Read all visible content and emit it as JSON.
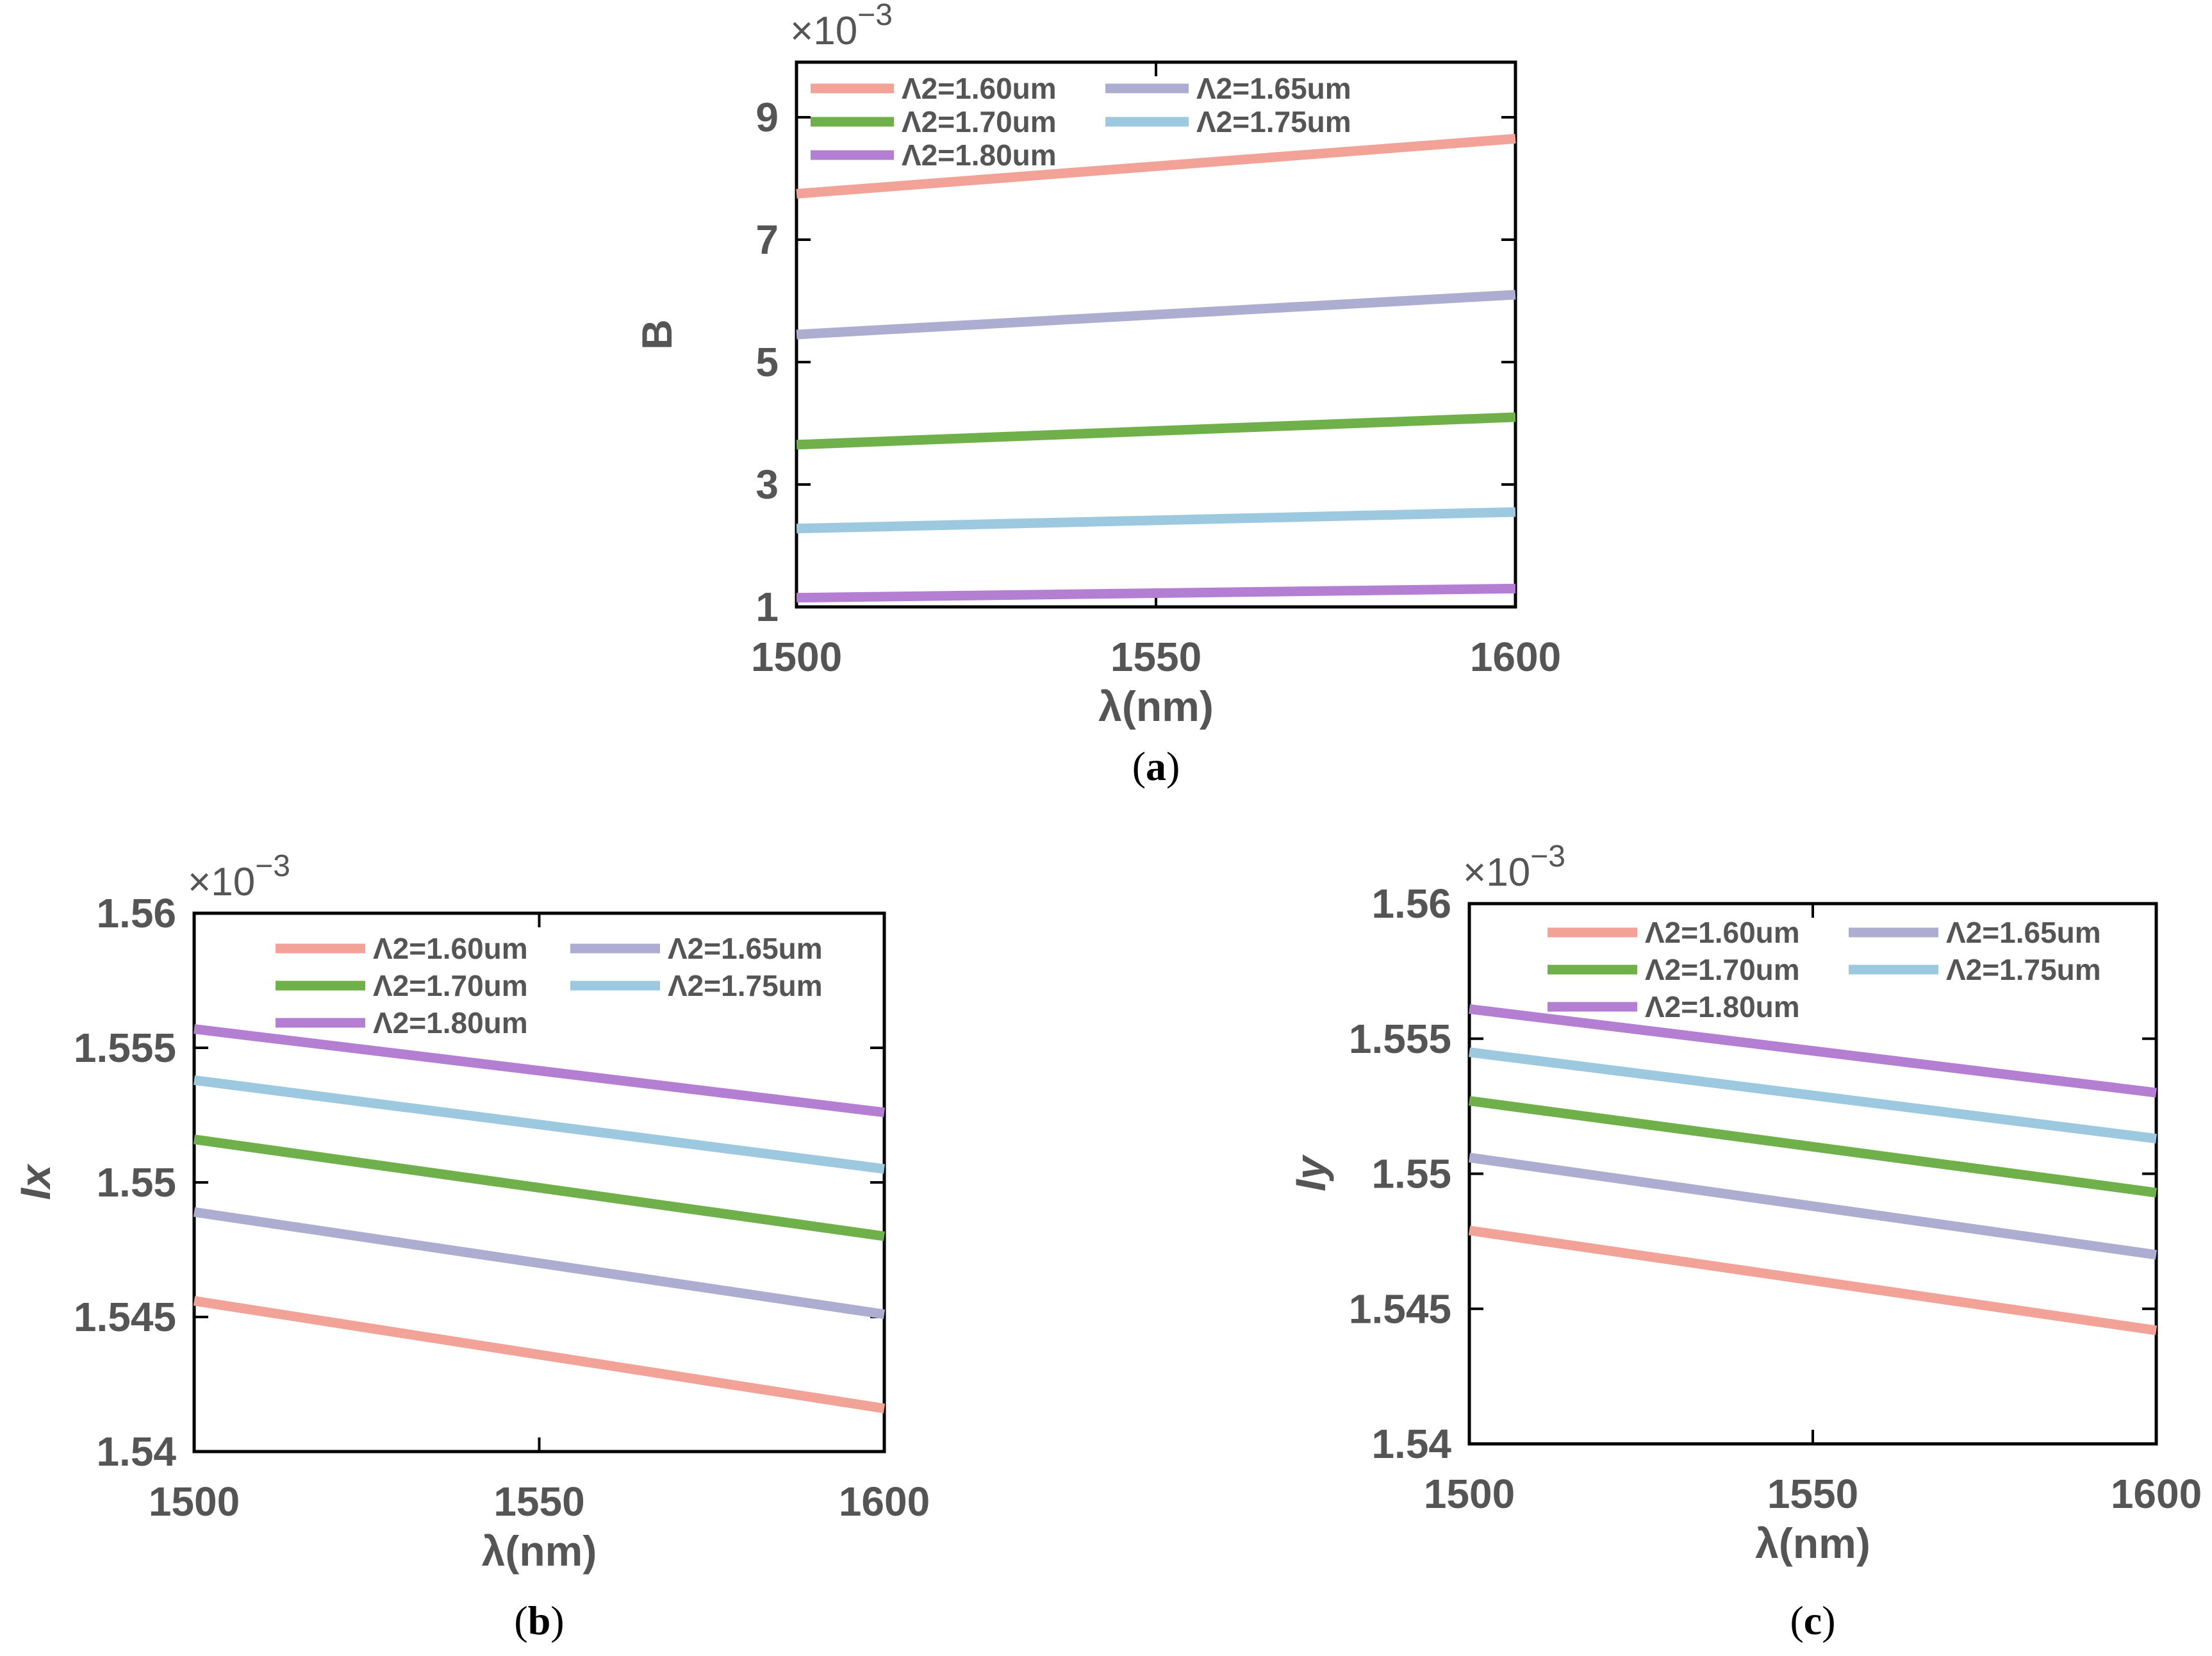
{
  "figure": {
    "caption_letters": [
      "a",
      "b",
      "c"
    ]
  },
  "colors": {
    "axis": "#000000",
    "text": "#555555",
    "series": [
      "#f2a297",
      "#adadd1",
      "#6fb04a",
      "#9cc8e0",
      "#b47fd3"
    ]
  },
  "chart_data": [
    {
      "id": "a",
      "type": "line",
      "caption": "a",
      "title": "",
      "xlabel": "λ(nm)",
      "ylabel": "B",
      "ylabel_italic": false,
      "exponent_label": "×10−3",
      "xlim": [
        1500,
        1600
      ],
      "ylim": [
        1,
        9.9
      ],
      "xticks": [
        1500,
        1550,
        1600
      ],
      "xtick_labels": [
        "1500",
        "1550",
        "1600"
      ],
      "yticks": [
        1,
        3,
        5,
        7,
        9
      ],
      "ytick_labels": [
        "1",
        "3",
        "5",
        "7",
        "9"
      ],
      "legend_position": "top-left",
      "series": [
        {
          "name": "Λ2=1.60um",
          "x": [
            1500,
            1600
          ],
          "y": [
            7.75,
            8.65
          ]
        },
        {
          "name": "Λ2=1.65um",
          "x": [
            1500,
            1600
          ],
          "y": [
            5.45,
            6.1
          ]
        },
        {
          "name": "Λ2=1.70um",
          "x": [
            1500,
            1600
          ],
          "y": [
            3.65,
            4.1
          ]
        },
        {
          "name": "Λ2=1.75um",
          "x": [
            1500,
            1600
          ],
          "y": [
            2.28,
            2.55
          ]
        },
        {
          "name": "Λ2=1.80um",
          "x": [
            1500,
            1600
          ],
          "y": [
            1.15,
            1.3
          ]
        }
      ]
    },
    {
      "id": "b",
      "type": "line",
      "caption": "b",
      "title": "",
      "xlabel": "λ(nm)",
      "ylabel": "Ix",
      "ylabel_italic": true,
      "exponent_label": "×10−3",
      "xlim": [
        1500,
        1600
      ],
      "ylim": [
        1.54,
        1.56
      ],
      "xticks": [
        1500,
        1550,
        1600
      ],
      "xtick_labels": [
        "1500",
        "1550",
        "1600"
      ],
      "yticks": [
        1.54,
        1.545,
        1.55,
        1.555,
        1.56
      ],
      "ytick_labels": [
        "1.54",
        "1.545",
        "1.55",
        "1.555",
        "1.56"
      ],
      "legend_position": "top",
      "series": [
        {
          "name": "Λ2=1.60um",
          "x": [
            1500,
            1600
          ],
          "y": [
            1.5456,
            1.5416
          ]
        },
        {
          "name": "Λ2=1.65um",
          "x": [
            1500,
            1600
          ],
          "y": [
            1.5489,
            1.5451
          ]
        },
        {
          "name": "Λ2=1.70um",
          "x": [
            1500,
            1600
          ],
          "y": [
            1.5516,
            1.548
          ]
        },
        {
          "name": "Λ2=1.75um",
          "x": [
            1500,
            1600
          ],
          "y": [
            1.5538,
            1.5505
          ]
        },
        {
          "name": "Λ2=1.80um",
          "x": [
            1500,
            1600
          ],
          "y": [
            1.5557,
            1.5526
          ]
        }
      ]
    },
    {
      "id": "c",
      "type": "line",
      "caption": "c",
      "title": "",
      "xlabel": "λ(nm)",
      "ylabel": "Iy",
      "ylabel_italic": true,
      "exponent_label": "×10−3",
      "xlim": [
        1500,
        1600
      ],
      "ylim": [
        1.54,
        1.56
      ],
      "xticks": [
        1500,
        1550,
        1600
      ],
      "xtick_labels": [
        "1500",
        "1550",
        "1600"
      ],
      "yticks": [
        1.54,
        1.545,
        1.55,
        1.555,
        1.56
      ],
      "ytick_labels": [
        "1.54",
        "1.545",
        "1.55",
        "1.555",
        "1.56"
      ],
      "legend_position": "top",
      "series": [
        {
          "name": "Λ2=1.60um",
          "x": [
            1500,
            1600
          ],
          "y": [
            1.5479,
            1.5442
          ]
        },
        {
          "name": "Λ2=1.65um",
          "x": [
            1500,
            1600
          ],
          "y": [
            1.5506,
            1.547
          ]
        },
        {
          "name": "Λ2=1.70um",
          "x": [
            1500,
            1600
          ],
          "y": [
            1.5527,
            1.5493
          ]
        },
        {
          "name": "Λ2=1.75um",
          "x": [
            1500,
            1600
          ],
          "y": [
            1.5545,
            1.5513
          ]
        },
        {
          "name": "Λ2=1.80um",
          "x": [
            1500,
            1600
          ],
          "y": [
            1.5561,
            1.553
          ]
        }
      ]
    }
  ]
}
